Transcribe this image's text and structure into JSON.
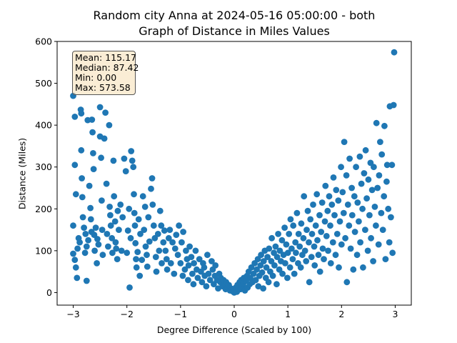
{
  "title_line1": "Random city Anna at 2024-05-16 05:00:00  - both",
  "title_line2": "Graph of Distance in Miles Values",
  "xlabel": "Degree Difference (Scaled by 100)",
  "ylabel": "Distance (Miles)",
  "stats": {
    "mean": "Mean: 115.17",
    "median": "Median: 87.42",
    "min": "Min: 0.00",
    "max": "Max: 573.58"
  },
  "colors": {
    "points": "#1f77b4",
    "stats_box": "#f5deb3"
  },
  "chart_data": {
    "type": "scatter",
    "xlim": [
      -3.3,
      3.3
    ],
    "ylim": [
      -30,
      600
    ],
    "xticks": [
      -3,
      -2,
      -1,
      0,
      1,
      2,
      3
    ],
    "yticks": [
      0,
      100,
      200,
      300,
      400,
      500,
      600
    ],
    "grid": false,
    "points": [
      [
        -3.0,
        470
      ],
      [
        -2.97,
        420
      ],
      [
        -2.97,
        305
      ],
      [
        -2.95,
        235
      ],
      [
        -3.0,
        160
      ],
      [
        -3.0,
        93
      ],
      [
        -2.97,
        78
      ],
      [
        -2.95,
        60
      ],
      [
        -2.93,
        35
      ],
      [
        -2.92,
        105
      ],
      [
        -2.9,
        130
      ],
      [
        -2.88,
        120
      ],
      [
        -2.86,
        437
      ],
      [
        -2.85,
        428
      ],
      [
        -2.85,
        340
      ],
      [
        -2.84,
        273
      ],
      [
        -2.83,
        228
      ],
      [
        -2.82,
        180
      ],
      [
        -2.8,
        155
      ],
      [
        -2.78,
        95
      ],
      [
        -2.77,
        140
      ],
      [
        -2.75,
        110
      ],
      [
        -2.75,
        28
      ],
      [
        -2.73,
        412
      ],
      [
        -2.72,
        125
      ],
      [
        -2.7,
        255
      ],
      [
        -2.68,
        202
      ],
      [
        -2.67,
        175
      ],
      [
        -2.66,
        145
      ],
      [
        -2.65,
        413
      ],
      [
        -2.64,
        383
      ],
      [
        -2.63,
        333
      ],
      [
        -2.62,
        295
      ],
      [
        -2.61,
        138
      ],
      [
        -2.6,
        100
      ],
      [
        -2.58,
        155
      ],
      [
        -2.56,
        70
      ],
      [
        -2.55,
        128
      ],
      [
        -2.53,
        115
      ],
      [
        -2.5,
        443
      ],
      [
        -2.5,
        373
      ],
      [
        -2.48,
        322
      ],
      [
        -2.47,
        220
      ],
      [
        -2.46,
        150
      ],
      [
        -2.45,
        90
      ],
      [
        -2.42,
        368
      ],
      [
        -2.4,
        430
      ],
      [
        -2.38,
        260
      ],
      [
        -2.37,
        140
      ],
      [
        -2.35,
        110
      ],
      [
        -2.33,
        400
      ],
      [
        -2.32,
        205
      ],
      [
        -2.31,
        185
      ],
      [
        -2.3,
        160
      ],
      [
        -2.28,
        130
      ],
      [
        -2.27,
        95
      ],
      [
        -2.25,
        315
      ],
      [
        -2.24,
        230
      ],
      [
        -2.22,
        170
      ],
      [
        -2.21,
        120
      ],
      [
        -2.2,
        105
      ],
      [
        -2.18,
        80
      ],
      [
        -2.17,
        195
      ],
      [
        -2.15,
        150
      ],
      [
        -2.12,
        210
      ],
      [
        -2.1,
        100
      ],
      [
        -2.08,
        180
      ],
      [
        -2.05,
        320
      ],
      [
        -2.02,
        290
      ],
      [
        -2.0,
        95
      ],
      [
        -1.98,
        148
      ],
      [
        -1.96,
        200
      ],
      [
        -1.95,
        12
      ],
      [
        -1.93,
        130
      ],
      [
        -1.92,
        338
      ],
      [
        -1.9,
        315
      ],
      [
        -1.88,
        300
      ],
      [
        -1.87,
        235
      ],
      [
        -1.86,
        190
      ],
      [
        -1.85,
        160
      ],
      [
        -1.84,
        118
      ],
      [
        -1.83,
        80
      ],
      [
        -1.82,
        60
      ],
      [
        -1.8,
        97
      ],
      [
        -1.78,
        175
      ],
      [
        -1.76,
        40
      ],
      [
        -1.75,
        140
      ],
      [
        -1.72,
        78
      ],
      [
        -1.7,
        230
      ],
      [
        -1.68,
        150
      ],
      [
        -1.66,
        205
      ],
      [
        -1.65,
        110
      ],
      [
        -1.63,
        90
      ],
      [
        -1.62,
        62
      ],
      [
        -1.6,
        180
      ],
      [
        -1.58,
        122
      ],
      [
        -1.55,
        248
      ],
      [
        -1.53,
        273
      ],
      [
        -1.52,
        210
      ],
      [
        -1.5,
        160
      ],
      [
        -1.48,
        130
      ],
      [
        -1.46,
        85
      ],
      [
        -1.45,
        50
      ],
      [
        -1.42,
        140
      ],
      [
        -1.4,
        100
      ],
      [
        -1.38,
        195
      ],
      [
        -1.36,
        160
      ],
      [
        -1.35,
        70
      ],
      [
        -1.32,
        120
      ],
      [
        -1.3,
        148
      ],
      [
        -1.28,
        100
      ],
      [
        -1.26,
        80
      ],
      [
        -1.25,
        55
      ],
      [
        -1.22,
        130
      ],
      [
        -1.2,
        150
      ],
      [
        -1.18,
        70
      ],
      [
        -1.15,
        120
      ],
      [
        -1.12,
        45
      ],
      [
        -1.1,
        105
      ],
      [
        -1.08,
        138
      ],
      [
        -1.05,
        90
      ],
      [
        -1.03,
        160
      ],
      [
        -1.0,
        70
      ],
      [
        -0.98,
        120
      ],
      [
        -0.96,
        40
      ],
      [
        -0.95,
        145
      ],
      [
        -0.92,
        55
      ],
      [
        -0.9,
        100
      ],
      [
        -0.88,
        80
      ],
      [
        -0.86,
        30
      ],
      [
        -0.85,
        65
      ],
      [
        -0.83,
        110
      ],
      [
        -0.8,
        85
      ],
      [
        -0.78,
        45
      ],
      [
        -0.76,
        20
      ],
      [
        -0.75,
        70
      ],
      [
        -0.72,
        100
      ],
      [
        -0.7,
        55
      ],
      [
        -0.68,
        35
      ],
      [
        -0.65,
        80
      ],
      [
        -0.62,
        50
      ],
      [
        -0.6,
        25
      ],
      [
        -0.58,
        70
      ],
      [
        -0.56,
        60
      ],
      [
        -0.55,
        40
      ],
      [
        -0.52,
        15
      ],
      [
        -0.5,
        90
      ],
      [
        -0.48,
        45
      ],
      [
        -0.45,
        30
      ],
      [
        -0.42,
        75
      ],
      [
        -0.4,
        55
      ],
      [
        -0.38,
        20
      ],
      [
        -0.36,
        40
      ],
      [
        -0.35,
        65
      ],
      [
        -0.32,
        30
      ],
      [
        -0.3,
        10
      ],
      [
        -0.28,
        45
      ],
      [
        -0.26,
        25
      ],
      [
        -0.25,
        35
      ],
      [
        -0.22,
        15
      ],
      [
        -0.2,
        30
      ],
      [
        -0.18,
        20
      ],
      [
        -0.16,
        8
      ],
      [
        -0.15,
        25
      ],
      [
        -0.12,
        12
      ],
      [
        -0.1,
        18
      ],
      [
        -0.08,
        5
      ],
      [
        -0.06,
        10
      ],
      [
        -0.05,
        6
      ],
      [
        -0.03,
        3
      ],
      [
        -0.02,
        8
      ],
      [
        0.0,
        0
      ],
      [
        0.01,
        4
      ],
      [
        0.03,
        12
      ],
      [
        0.05,
        2
      ],
      [
        0.06,
        18
      ],
      [
        0.08,
        10
      ],
      [
        0.1,
        25
      ],
      [
        0.12,
        8
      ],
      [
        0.13,
        30
      ],
      [
        0.15,
        15
      ],
      [
        0.17,
        22
      ],
      [
        0.18,
        35
      ],
      [
        0.2,
        5
      ],
      [
        0.22,
        28
      ],
      [
        0.24,
        40
      ],
      [
        0.25,
        12
      ],
      [
        0.27,
        50
      ],
      [
        0.29,
        20
      ],
      [
        0.3,
        35
      ],
      [
        0.32,
        60
      ],
      [
        0.34,
        25
      ],
      [
        0.36,
        45
      ],
      [
        0.38,
        70
      ],
      [
        0.4,
        30
      ],
      [
        0.42,
        55
      ],
      [
        0.44,
        80
      ],
      [
        0.45,
        15
      ],
      [
        0.47,
        40
      ],
      [
        0.49,
        65
      ],
      [
        0.5,
        90
      ],
      [
        0.52,
        48
      ],
      [
        0.54,
        10
      ],
      [
        0.55,
        75
      ],
      [
        0.57,
        100
      ],
      [
        0.59,
        35
      ],
      [
        0.6,
        60
      ],
      [
        0.62,
        85
      ],
      [
        0.64,
        25
      ],
      [
        0.65,
        105
      ],
      [
        0.67,
        50
      ],
      [
        0.69,
        75
      ],
      [
        0.7,
        130
      ],
      [
        0.72,
        40
      ],
      [
        0.74,
        95
      ],
      [
        0.75,
        65
      ],
      [
        0.77,
        110
      ],
      [
        0.79,
        20
      ],
      [
        0.8,
        85
      ],
      [
        0.82,
        140
      ],
      [
        0.84,
        55
      ],
      [
        0.85,
        100
      ],
      [
        0.87,
        75
      ],
      [
        0.89,
        125
      ],
      [
        0.9,
        45
      ],
      [
        0.92,
        90
      ],
      [
        0.94,
        155
      ],
      [
        0.95,
        70
      ],
      [
        0.97,
        115
      ],
      [
        0.99,
        35
      ],
      [
        1.0,
        95
      ],
      [
        1.02,
        140
      ],
      [
        1.04,
        60
      ],
      [
        1.05,
        175
      ],
      [
        1.07,
        105
      ],
      [
        1.09,
        80
      ],
      [
        1.1,
        160
      ],
      [
        1.12,
        45
      ],
      [
        1.14,
        120
      ],
      [
        1.15,
        95
      ],
      [
        1.17,
        190
      ],
      [
        1.19,
        70
      ],
      [
        1.2,
        140
      ],
      [
        1.22,
        110
      ],
      [
        1.24,
        60
      ],
      [
        1.25,
        165
      ],
      [
        1.27,
        90
      ],
      [
        1.29,
        130
      ],
      [
        1.3,
        230
      ],
      [
        1.32,
        100
      ],
      [
        1.34,
        75
      ],
      [
        1.35,
        150
      ],
      [
        1.37,
        195
      ],
      [
        1.39,
        120
      ],
      [
        1.4,
        25
      ],
      [
        1.42,
        175
      ],
      [
        1.44,
        85
      ],
      [
        1.45,
        140
      ],
      [
        1.47,
        210
      ],
      [
        1.49,
        110
      ],
      [
        1.5,
        65
      ],
      [
        1.52,
        160
      ],
      [
        1.54,
        235
      ],
      [
        1.55,
        125
      ],
      [
        1.57,
        90
      ],
      [
        1.59,
        185
      ],
      [
        1.6,
        50
      ],
      [
        1.62,
        145
      ],
      [
        1.64,
        215
      ],
      [
        1.65,
        105
      ],
      [
        1.67,
        80
      ],
      [
        1.69,
        170
      ],
      [
        1.7,
        255
      ],
      [
        1.72,
        135
      ],
      [
        1.74,
        195
      ],
      [
        1.75,
        100
      ],
      [
        1.77,
        230
      ],
      [
        1.79,
        160
      ],
      [
        1.8,
        70
      ],
      [
        1.82,
        210
      ],
      [
        1.84,
        120
      ],
      [
        1.85,
        275
      ],
      [
        1.87,
        185
      ],
      [
        1.89,
        90
      ],
      [
        1.9,
        245
      ],
      [
        1.92,
        140
      ],
      [
        1.94,
        220
      ],
      [
        1.95,
        60
      ],
      [
        1.97,
        170
      ],
      [
        1.99,
        300
      ],
      [
        2.0,
        115
      ],
      [
        2.02,
        240
      ],
      [
        2.04,
        190
      ],
      [
        2.05,
        360
      ],
      [
        2.07,
        130
      ],
      [
        2.09,
        280
      ],
      [
        2.1,
        25
      ],
      [
        2.12,
        210
      ],
      [
        2.14,
        160
      ],
      [
        2.15,
        320
      ],
      [
        2.17,
        105
      ],
      [
        2.19,
        250
      ],
      [
        2.2,
        185
      ],
      [
        2.22,
        55
      ],
      [
        2.24,
        230
      ],
      [
        2.25,
        145
      ],
      [
        2.27,
        300
      ],
      [
        2.29,
        90
      ],
      [
        2.3,
        215
      ],
      [
        2.32,
        170
      ],
      [
        2.34,
        325
      ],
      [
        2.35,
        120
      ],
      [
        2.37,
        260
      ],
      [
        2.39,
        200
      ],
      [
        2.4,
        60
      ],
      [
        2.42,
        285
      ],
      [
        2.44,
        150
      ],
      [
        2.45,
        340
      ],
      [
        2.47,
        225
      ],
      [
        2.49,
        100
      ],
      [
        2.5,
        270
      ],
      [
        2.52,
        185
      ],
      [
        2.54,
        310
      ],
      [
        2.55,
        130
      ],
      [
        2.57,
        245
      ],
      [
        2.59,
        75
      ],
      [
        2.6,
        300
      ],
      [
        2.62,
        205
      ],
      [
        2.64,
        160
      ],
      [
        2.65,
        405
      ],
      [
        2.67,
        250
      ],
      [
        2.69,
        115
      ],
      [
        2.7,
        280
      ],
      [
        2.72,
        360
      ],
      [
        2.74,
        190
      ],
      [
        2.75,
        330
      ],
      [
        2.77,
        150
      ],
      [
        2.79,
        230
      ],
      [
        2.8,
        398
      ],
      [
        2.82,
        80
      ],
      [
        2.84,
        265
      ],
      [
        2.85,
        305
      ],
      [
        2.87,
        200
      ],
      [
        2.89,
        120
      ],
      [
        2.9,
        445
      ],
      [
        2.92,
        180
      ],
      [
        2.94,
        305
      ],
      [
        2.95,
        95
      ],
      [
        2.97,
        448
      ],
      [
        2.98,
        574
      ]
    ]
  }
}
